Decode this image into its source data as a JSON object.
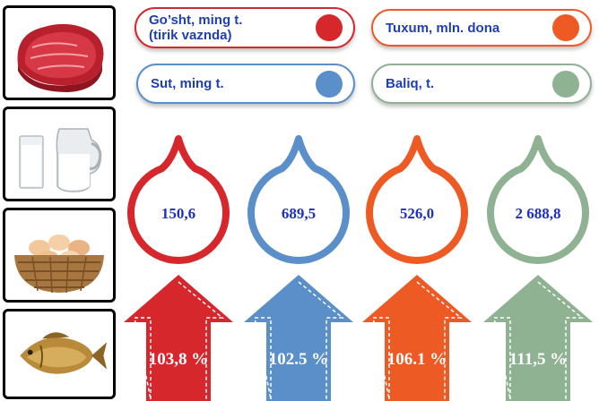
{
  "legend": [
    {
      "label": "Go’sht, ming t.\n(tirik vaznda)",
      "color": "#d6272d"
    },
    {
      "label": "Tuxum, mln. dona",
      "color": "#ee5a24"
    },
    {
      "label": "Sut, ming t.",
      "color": "#5a8fc9"
    },
    {
      "label": "Baliq, t.",
      "color": "#8fb293"
    }
  ],
  "photos": [
    {
      "icon": "meat-icon",
      "border": "#c8443c"
    },
    {
      "icon": "milk-icon",
      "border": "#4a74c9"
    },
    {
      "icon": "eggs-icon",
      "border": "#e06a3a"
    },
    {
      "icon": "fish-icon",
      "border": "#7fb56e"
    }
  ],
  "values": [
    {
      "value": "150,6",
      "color": "#d6272d"
    },
    {
      "value": "689,5",
      "color": "#5a8fc9"
    },
    {
      "value": "526,0",
      "color": "#ee5a24"
    },
    {
      "value": "2 688,8",
      "color": "#8fb293"
    }
  ],
  "growth": [
    {
      "value": "103,8 %",
      "color": "#d6272d"
    },
    {
      "value": "102.5 %",
      "color": "#5a8fc9"
    },
    {
      "value": "106.1 %",
      "color": "#ee5a24"
    },
    {
      "value": "111,5 %",
      "color": "#8fb293"
    }
  ]
}
